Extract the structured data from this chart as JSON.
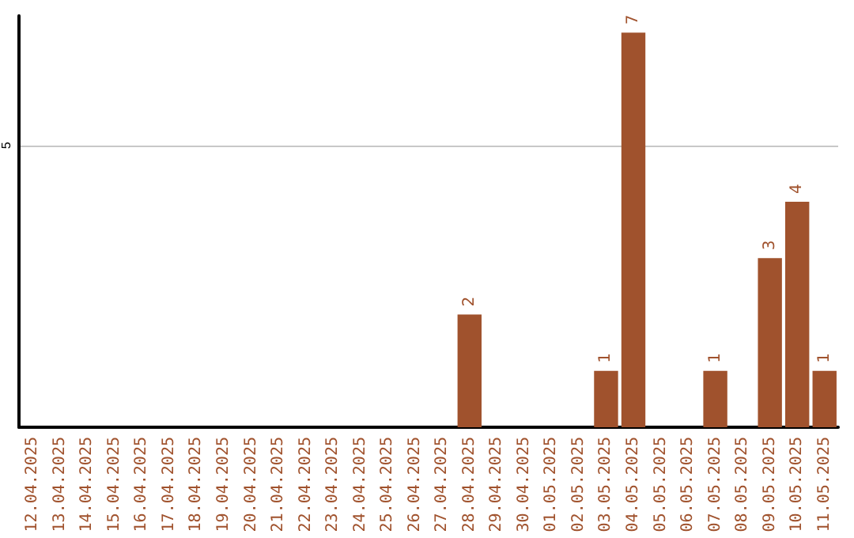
{
  "chart_data": {
    "type": "bar",
    "categories": [
      "12.04.2025",
      "13.04.2025",
      "14.04.2025",
      "15.04.2025",
      "16.04.2025",
      "17.04.2025",
      "18.04.2025",
      "19.04.2025",
      "20.04.2025",
      "21.04.2025",
      "22.04.2025",
      "23.04.2025",
      "24.04.2025",
      "25.04.2025",
      "26.04.2025",
      "27.04.2025",
      "28.04.2025",
      "29.04.2025",
      "30.04.2025",
      "01.05.2025",
      "02.05.2025",
      "03.05.2025",
      "04.05.2025",
      "05.05.2025",
      "06.05.2025",
      "07.05.2025",
      "08.05.2025",
      "09.05.2025",
      "10.05.2025",
      "11.05.2025"
    ],
    "values": [
      null,
      null,
      null,
      null,
      null,
      null,
      null,
      null,
      null,
      null,
      null,
      null,
      null,
      null,
      null,
      null,
      2,
      null,
      null,
      null,
      null,
      1,
      7,
      null,
      null,
      1,
      null,
      3,
      4,
      1
    ],
    "color": "#a0522d",
    "ylim": [
      0,
      7.3
    ],
    "yticks": [
      5
    ],
    "grid": "y",
    "data_labels": true
  }
}
